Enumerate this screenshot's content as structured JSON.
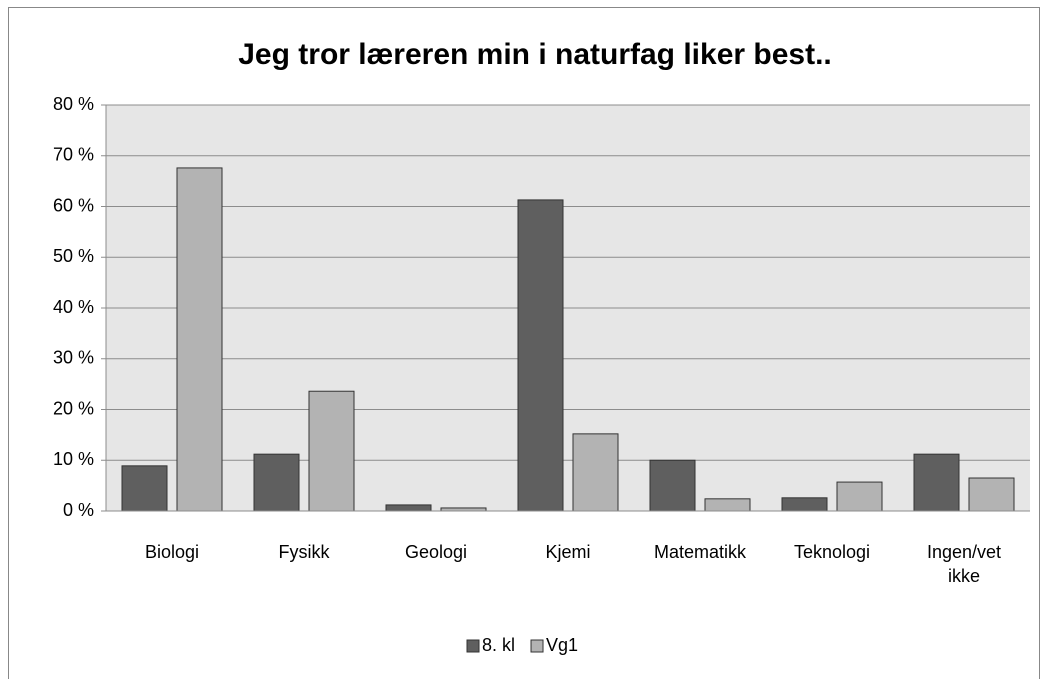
{
  "chart_data": {
    "type": "bar",
    "title": "Jeg tror læreren min i naturfag liker best..",
    "categories": [
      "Biologi",
      "Fysikk",
      "Geologi",
      "Kjemi",
      "Matematikk",
      "Teknologi",
      "Ingen/vet ikke"
    ],
    "series": [
      {
        "name": "8. kl",
        "color": "#5f5f5f",
        "values": [
          8.9,
          11.2,
          1.2,
          61.3,
          10.0,
          2.6,
          11.2
        ]
      },
      {
        "name": "Vg1",
        "color": "#b3b3b3",
        "values": [
          67.6,
          23.6,
          0.6,
          15.2,
          2.4,
          5.7,
          6.5
        ]
      }
    ],
    "ylim": [
      0,
      80
    ],
    "yticks": [
      {
        "value": 0,
        "label": "0 %"
      },
      {
        "value": 10,
        "label": "10 %"
      },
      {
        "value": 20,
        "label": "20 %"
      },
      {
        "value": 30,
        "label": "30 %"
      },
      {
        "value": 40,
        "label": "40 %"
      },
      {
        "value": 50,
        "label": "50 %"
      },
      {
        "value": 60,
        "label": "60 %"
      },
      {
        "value": 70,
        "label": "70 %"
      },
      {
        "value": 80,
        "label": "80 %"
      }
    ],
    "grid": true,
    "legend": "bottom"
  }
}
